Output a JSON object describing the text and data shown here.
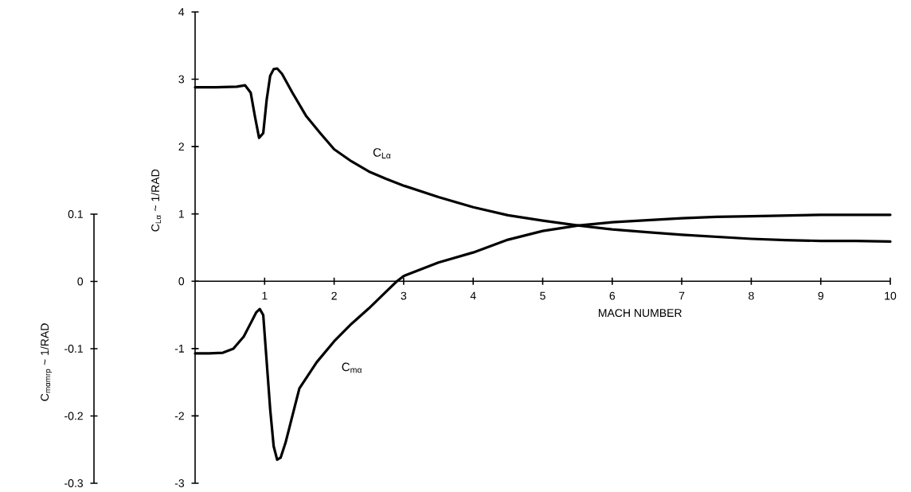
{
  "chart_data": {
    "type": "line",
    "xlabel": "MACH NUMBER",
    "ylabel": "C$_{Lα}$ ~ 1/RAD",
    "y2label": "C$_{mαmrp}$ ~ 1/RAD",
    "xlim": [
      0,
      10
    ],
    "xticks": [
      1,
      2,
      3,
      4,
      5,
      6,
      7,
      8,
      9,
      10
    ],
    "ylim": [
      -3,
      4
    ],
    "yticks": [
      -3,
      -2,
      -1,
      0,
      1,
      2,
      3,
      4
    ],
    "y2lim": [
      -0.3,
      0.1
    ],
    "y2ticks": [
      -0.3,
      -0.2,
      -0.1,
      0,
      0.1
    ],
    "marker": "none",
    "line_style": "solid",
    "series": [
      {
        "color": "#000000",
        "x": [
          0,
          0.3,
          0.6,
          0.72,
          0.8,
          0.86,
          0.92,
          0.98,
          1.03,
          1.08,
          1.13,
          1.18,
          1.25,
          1.4,
          1.6,
          1.8,
          2.0,
          2.25,
          2.5,
          2.75,
          3.0,
          3.5,
          4.0,
          4.5,
          5.0,
          5.5,
          6.0,
          6.5,
          7.0,
          7.5,
          8.0,
          8.5,
          9.0,
          9.5,
          10.0
        ],
        "values": [
          2.88,
          2.88,
          2.89,
          2.91,
          2.8,
          2.45,
          2.13,
          2.2,
          2.7,
          3.05,
          3.15,
          3.16,
          3.08,
          2.8,
          2.45,
          2.2,
          1.96,
          1.78,
          1.63,
          1.52,
          1.42,
          1.25,
          1.1,
          0.98,
          0.9,
          0.83,
          0.77,
          0.73,
          0.69,
          0.66,
          0.63,
          0.61,
          0.6,
          0.6,
          0.59
        ]
      },
      {
        "color": "#000000",
        "axis": "y2",
        "x": [
          0,
          0.2,
          0.4,
          0.55,
          0.7,
          0.8,
          0.88,
          0.93,
          0.98,
          1.03,
          1.08,
          1.13,
          1.18,
          1.23,
          1.3,
          1.5,
          1.75,
          2.0,
          2.25,
          2.5,
          2.75,
          2.9,
          3.0,
          3.5,
          4.0,
          4.5,
          5.0,
          5.5,
          6.0,
          6.5,
          7.0,
          7.5,
          8.0,
          9.0,
          10.0
        ],
        "values": [
          -0.107,
          -0.107,
          -0.106,
          -0.1,
          -0.082,
          -0.062,
          -0.046,
          -0.041,
          -0.05,
          -0.12,
          -0.19,
          -0.245,
          -0.265,
          -0.262,
          -0.24,
          -0.159,
          -0.12,
          -0.089,
          -0.063,
          -0.04,
          -0.015,
          0,
          0.008,
          0.028,
          0.043,
          0.062,
          0.075,
          0.083,
          0.088,
          0.091,
          0.094,
          0.096,
          0.097,
          0.099,
          0.099
        ]
      }
    ],
    "annotations": [
      "C$_{Lα}$",
      "C$_{mα}$"
    ]
  }
}
